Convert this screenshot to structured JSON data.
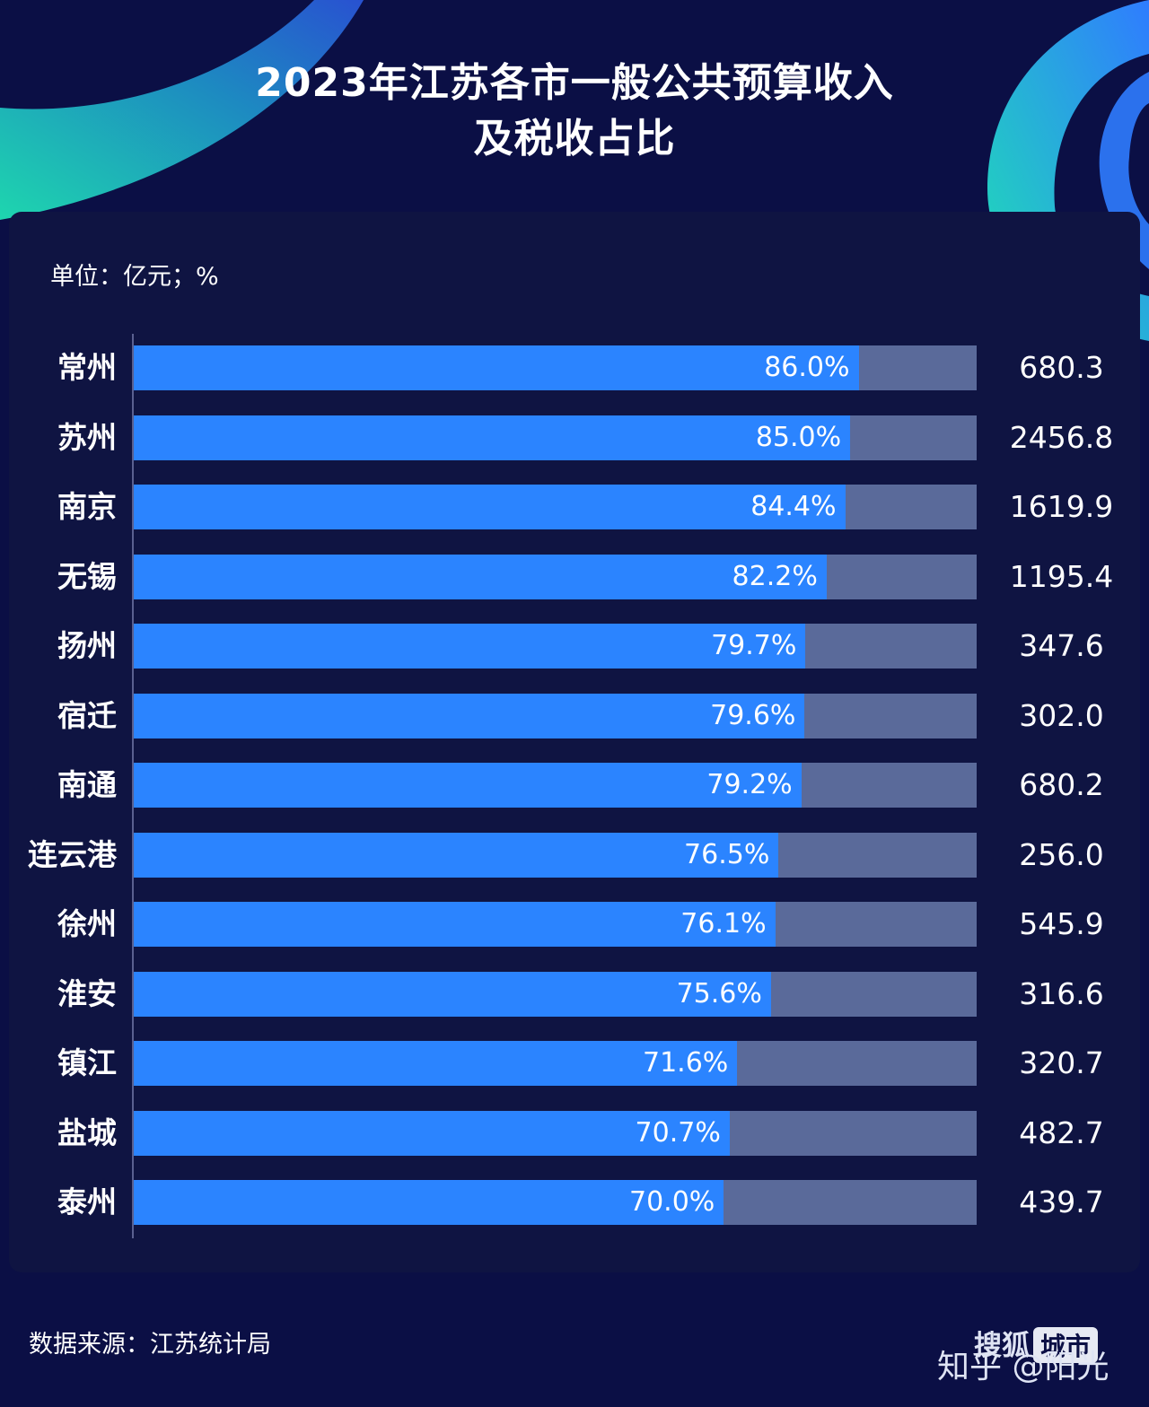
{
  "chart_data": {
    "type": "bar",
    "title": "2023年江苏各市一般公共预算收入",
    "subtitle": "及税收占比",
    "unit_label": "单位：亿元；%",
    "xlim": [
      0,
      100
    ],
    "categories": [
      "常州",
      "苏州",
      "南京",
      "无锡",
      "扬州",
      "宿迁",
      "南通",
      "连云港",
      "徐州",
      "淮安",
      "镇江",
      "盐城",
      "泰州"
    ],
    "tax_share_pct": [
      86.0,
      85.0,
      84.4,
      82.2,
      79.7,
      79.6,
      79.2,
      76.5,
      76.1,
      75.6,
      71.6,
      70.7,
      70.0
    ],
    "tax_share_labels": [
      "86.0%",
      "85.0%",
      "84.4%",
      "82.2%",
      "79.7%",
      "79.6%",
      "79.2%",
      "76.5%",
      "76.1%",
      "75.6%",
      "71.6%",
      "70.7%",
      "70.0%"
    ],
    "revenue": [
      680.3,
      2456.8,
      1619.9,
      1195.4,
      347.6,
      302.0,
      680.2,
      256.0,
      545.9,
      316.6,
      320.7,
      482.7,
      439.7
    ],
    "revenue_labels": [
      "680.3",
      "2456.8",
      "1619.9",
      "1195.4",
      "347.6",
      "302.0",
      "680.2",
      "256.0",
      "545.9",
      "316.6",
      "320.7",
      "482.7",
      "439.7"
    ],
    "colors": {
      "fill": "#2b84ff",
      "track": "#5a6a9a",
      "background": "#0b0f45"
    }
  },
  "footer": {
    "source": "数据来源：江苏统计局",
    "watermark_sohu": "搜狐",
    "watermark_city": "城市",
    "watermark_zhihu": "知乎 @阳光"
  }
}
